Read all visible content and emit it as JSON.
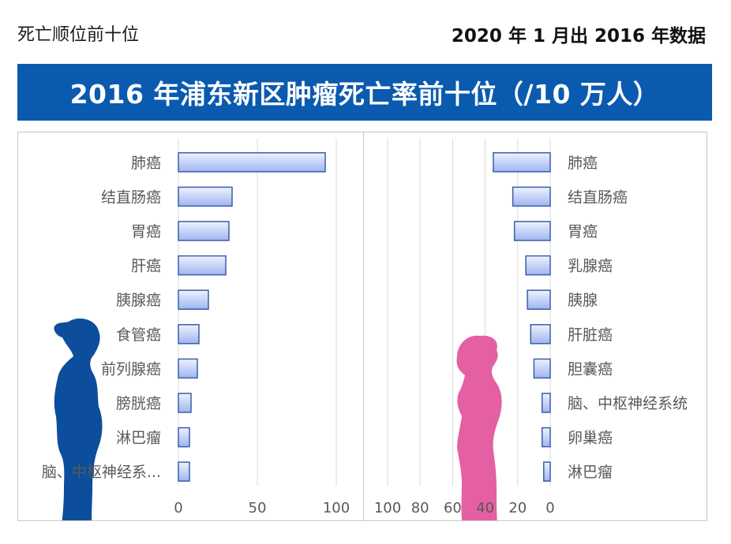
{
  "header": {
    "left_text": "死亡顺位前十位",
    "right_text": "2020 年 1 月出 2016 年数据"
  },
  "banner": {
    "title": "2016 年浦东新区肿瘤死亡率前十位（/10 万人）"
  },
  "colors": {
    "banner": "#0a5aaf",
    "bar_light": "#dfe7fb",
    "bar_dark": "#9fb5f0",
    "bar_border": "#3a5ea8",
    "male_figure": "#0c4d9c",
    "female_figure": "#e55fa3"
  },
  "chart_data": [
    {
      "type": "bar",
      "orientation": "horizontal",
      "group": "男",
      "categories": [
        "肺癌",
        "结直肠癌",
        "胃癌",
        "肝癌",
        "胰腺癌",
        "食管癌",
        "前列腺癌",
        "膀胱癌",
        "淋巴瘤",
        "脑、中枢神经系..."
      ],
      "values": [
        93,
        34,
        32,
        30,
        19,
        13,
        12,
        8,
        7,
        7
      ],
      "xlim": [
        0,
        100
      ],
      "xticks": [
        0,
        50,
        100
      ],
      "grid": true
    },
    {
      "type": "bar",
      "orientation": "horizontal",
      "direction": "reversed",
      "group": "女",
      "categories": [
        "肺癌",
        "结直肠癌",
        "胃癌",
        "乳腺癌",
        "胰腺",
        "肝脏癌",
        "胆囊癌",
        "脑、中枢神经系统",
        "卵巢癌",
        "淋巴瘤"
      ],
      "values": [
        35,
        23,
        22,
        15,
        14,
        12,
        10,
        5,
        5,
        4
      ],
      "xlim": [
        0,
        100
      ],
      "xticks": [
        100,
        80,
        60,
        40,
        20,
        0
      ],
      "grid": true
    }
  ]
}
